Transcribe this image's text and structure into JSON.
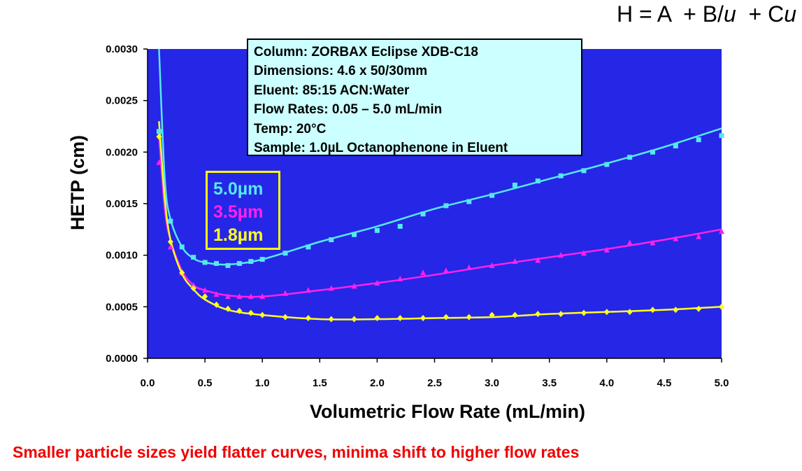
{
  "equation": {
    "h": "H = A",
    "b": "+ B/",
    "u": "u",
    "c": "+ C",
    "cu": "u"
  },
  "colors": {
    "plot_background": "#2626e6",
    "series_5_0": "#55e8f0",
    "series_3_5": "#ff22ee",
    "series_1_8": "#ffff22",
    "caption": "#ee0000",
    "info_box": "#ccffff"
  },
  "info_box": {
    "lines": [
      "Column: ZORBAX Eclipse XDB-C18",
      "Dimensions: 4.6 x 50/30mm",
      "Eluent: 85:15 ACN:Water",
      "Flow Rates: 0.05 – 5.0 mL/min",
      "Temp: 20°C",
      "Sample: 1.0µL Octanophenone in Eluent"
    ]
  },
  "caption": "Smaller particle sizes yield flatter curves, minima shift to higher flow rates",
  "chart_data": {
    "type": "scatter",
    "xlabel": "Volumetric Flow Rate (mL/min)",
    "ylabel": "HETP (cm)",
    "xlim": [
      0,
      5
    ],
    "ylim": [
      0,
      0.003
    ],
    "x_ticks": [
      "0.0",
      "0.5",
      "1.0",
      "1.5",
      "2.0",
      "2.5",
      "3.0",
      "3.5",
      "4.0",
      "4.5",
      "5.0"
    ],
    "y_ticks": [
      "0.0000",
      "0.0005",
      "0.0010",
      "0.0015",
      "0.0020",
      "0.0025",
      "0.0030"
    ],
    "legend": [
      "5.0µm",
      "3.5µm",
      "1.8µm"
    ],
    "legend_placement": "inside, left",
    "grid": false,
    "series": [
      {
        "name": "5.0µm",
        "marker": "square",
        "points": [
          [
            0.1,
            0.0022
          ],
          [
            0.2,
            0.00133
          ],
          [
            0.3,
            0.00108
          ],
          [
            0.4,
            0.00098
          ],
          [
            0.5,
            0.00093
          ],
          [
            0.6,
            0.00092
          ],
          [
            0.7,
            0.0009
          ],
          [
            0.8,
            0.00092
          ],
          [
            0.9,
            0.00094
          ],
          [
            1.0,
            0.00096
          ],
          [
            1.2,
            0.00102
          ],
          [
            1.4,
            0.00108
          ],
          [
            1.6,
            0.00115
          ],
          [
            1.8,
            0.0012
          ],
          [
            2.0,
            0.00124
          ],
          [
            2.2,
            0.00128
          ],
          [
            2.4,
            0.0014
          ],
          [
            2.6,
            0.00148
          ],
          [
            2.8,
            0.00152
          ],
          [
            3.0,
            0.00158
          ],
          [
            3.2,
            0.00168
          ],
          [
            3.4,
            0.00172
          ],
          [
            3.6,
            0.00177
          ],
          [
            3.8,
            0.00182
          ],
          [
            4.0,
            0.00188
          ],
          [
            4.2,
            0.00195
          ],
          [
            4.4,
            0.002
          ],
          [
            4.6,
            0.00206
          ],
          [
            4.8,
            0.00212
          ],
          [
            5.0,
            0.00216
          ]
        ],
        "fit": [
          [
            0.1,
            0.003
          ],
          [
            0.15,
            0.00175
          ],
          [
            0.2,
            0.00135
          ],
          [
            0.3,
            0.00108
          ],
          [
            0.4,
            0.00097
          ],
          [
            0.5,
            0.00093
          ],
          [
            0.7,
            0.00091
          ],
          [
            1.0,
            0.00096
          ],
          [
            1.5,
            0.00113
          ],
          [
            2.0,
            0.00128
          ],
          [
            2.5,
            0.00145
          ],
          [
            3.0,
            0.00159
          ],
          [
            3.5,
            0.00174
          ],
          [
            4.0,
            0.00189
          ],
          [
            4.5,
            0.00205
          ],
          [
            5.0,
            0.00223
          ]
        ]
      },
      {
        "name": "3.5µm",
        "marker": "triangle",
        "points": [
          [
            0.1,
            0.0019
          ],
          [
            0.2,
            0.00108
          ],
          [
            0.3,
            0.00083
          ],
          [
            0.4,
            0.00071
          ],
          [
            0.5,
            0.00066
          ],
          [
            0.6,
            0.00062
          ],
          [
            0.7,
            0.0006
          ],
          [
            0.8,
            0.0006
          ],
          [
            0.9,
            0.0006
          ],
          [
            1.0,
            0.0006
          ],
          [
            1.2,
            0.00063
          ],
          [
            1.4,
            0.00066
          ],
          [
            1.6,
            0.00068
          ],
          [
            1.8,
            0.0007
          ],
          [
            2.0,
            0.00073
          ],
          [
            2.2,
            0.00077
          ],
          [
            2.4,
            0.00083
          ],
          [
            2.6,
            0.00085
          ],
          [
            2.8,
            0.00088
          ],
          [
            3.0,
            0.0009
          ],
          [
            3.2,
            0.00094
          ],
          [
            3.4,
            0.00095
          ],
          [
            3.6,
            0.001
          ],
          [
            3.8,
            0.00102
          ],
          [
            4.0,
            0.00105
          ],
          [
            4.2,
            0.00112
          ],
          [
            4.4,
            0.00112
          ],
          [
            4.6,
            0.00116
          ],
          [
            4.8,
            0.00118
          ],
          [
            5.0,
            0.00123
          ]
        ],
        "fit": [
          [
            0.1,
            0.00215
          ],
          [
            0.15,
            0.00145
          ],
          [
            0.2,
            0.00115
          ],
          [
            0.3,
            0.00085
          ],
          [
            0.4,
            0.00071
          ],
          [
            0.5,
            0.00066
          ],
          [
            0.7,
            0.00061
          ],
          [
            1.0,
            0.0006
          ],
          [
            1.5,
            0.00066
          ],
          [
            2.0,
            0.00073
          ],
          [
            2.5,
            0.00081
          ],
          [
            3.0,
            0.0009
          ],
          [
            3.5,
            0.00098
          ],
          [
            4.0,
            0.00106
          ],
          [
            4.5,
            0.00115
          ],
          [
            5.0,
            0.00125
          ]
        ]
      },
      {
        "name": "1.8µm",
        "marker": "diamond",
        "points": [
          [
            0.1,
            0.00215
          ],
          [
            0.2,
            0.00113
          ],
          [
            0.3,
            0.00083
          ],
          [
            0.4,
            0.00068
          ],
          [
            0.5,
            0.0006
          ],
          [
            0.6,
            0.00052
          ],
          [
            0.7,
            0.00048
          ],
          [
            0.8,
            0.00046
          ],
          [
            0.9,
            0.00044
          ],
          [
            1.0,
            0.00042
          ],
          [
            1.2,
            0.0004
          ],
          [
            1.4,
            0.00039
          ],
          [
            1.6,
            0.00038
          ],
          [
            1.8,
            0.00038
          ],
          [
            2.0,
            0.00039
          ],
          [
            2.2,
            0.00039
          ],
          [
            2.4,
            0.00039
          ],
          [
            2.6,
            0.0004
          ],
          [
            2.8,
            0.0004
          ],
          [
            3.0,
            0.00042
          ],
          [
            3.2,
            0.00042
          ],
          [
            3.4,
            0.00043
          ],
          [
            3.6,
            0.00043
          ],
          [
            3.8,
            0.00044
          ],
          [
            4.0,
            0.00045
          ],
          [
            4.2,
            0.00045
          ],
          [
            4.4,
            0.00047
          ],
          [
            4.6,
            0.00047
          ],
          [
            4.8,
            0.00048
          ],
          [
            5.0,
            0.0005
          ]
        ],
        "fit": [
          [
            0.1,
            0.0023
          ],
          [
            0.15,
            0.00155
          ],
          [
            0.2,
            0.00115
          ],
          [
            0.3,
            0.00082
          ],
          [
            0.4,
            0.00067
          ],
          [
            0.5,
            0.00057
          ],
          [
            0.7,
            0.00047
          ],
          [
            1.0,
            0.00042
          ],
          [
            1.5,
            0.00038
          ],
          [
            2.0,
            0.00038
          ],
          [
            2.5,
            0.00039
          ],
          [
            3.0,
            0.0004
          ],
          [
            3.5,
            0.00043
          ],
          [
            4.0,
            0.00045
          ],
          [
            4.5,
            0.00047
          ],
          [
            5.0,
            0.0005
          ]
        ]
      }
    ]
  }
}
